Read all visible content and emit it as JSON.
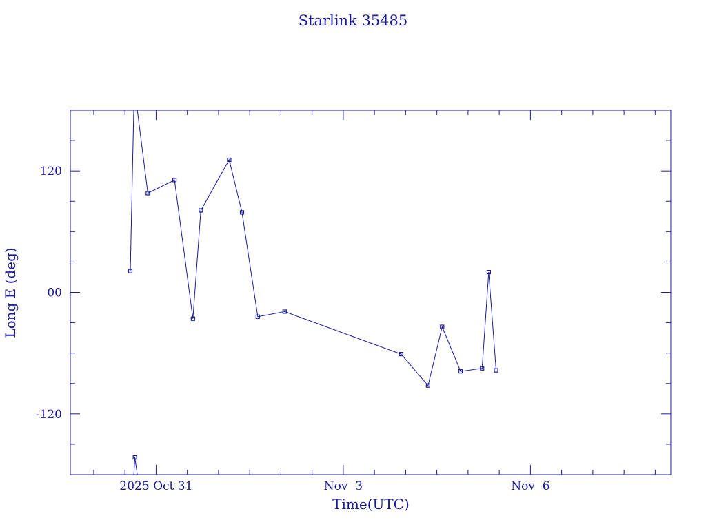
{
  "chart_data": {
    "type": "line",
    "title": "Starlink 35485",
    "xlabel": "Time(UTC)",
    "ylabel": "Long E (deg)",
    "color": "#1a1a9e",
    "ylim": [
      -180,
      180
    ],
    "y_ticks": [
      {
        "value": 120,
        "label": "120"
      },
      {
        "value": 0,
        "label": "00"
      },
      {
        "value": -120,
        "label": "-120"
      }
    ],
    "xlim": [
      "2025-10-29T15:00",
      "2025-11-08T06:00"
    ],
    "x_ticks": [
      {
        "value": "2025-10-31T00:00",
        "label": "2025 Oct 31"
      },
      {
        "value": "2025-11-03T00:00",
        "label": "Nov  3"
      },
      {
        "value": "2025-11-06T00:00",
        "label": "Nov  6"
      }
    ],
    "grid": false,
    "segments": [
      [
        {
          "t": "2025-10-30T14:04",
          "y": 21
        },
        {
          "t": "2025-10-30T15:24",
          "y": 180
        }
      ],
      [
        {
          "t": "2025-10-30T15:26",
          "y": -180
        },
        {
          "t": "2025-10-30T15:50",
          "y": -163
        },
        {
          "t": "2025-10-30T16:45",
          "y": -180
        }
      ],
      [
        {
          "t": "2025-10-30T16:47",
          "y": 180
        },
        {
          "t": "2025-10-30T20:48",
          "y": 98
        },
        {
          "t": "2025-10-31T07:04",
          "y": 111
        },
        {
          "t": "2025-10-31T14:09",
          "y": -26
        },
        {
          "t": "2025-10-31T17:13",
          "y": 81
        },
        {
          "t": "2025-11-01T04:07",
          "y": 131
        },
        {
          "t": "2025-11-01T09:02",
          "y": 79
        },
        {
          "t": "2025-11-01T15:06",
          "y": -24
        },
        {
          "t": "2025-11-02T01:26",
          "y": -19
        },
        {
          "t": "2025-11-03T22:14",
          "y": -61
        },
        {
          "t": "2025-11-04T08:37",
          "y": -92
        },
        {
          "t": "2025-11-04T14:02",
          "y": -34
        },
        {
          "t": "2025-11-04T21:09",
          "y": -78
        },
        {
          "t": "2025-11-05T05:24",
          "y": -75
        },
        {
          "t": "2025-11-05T07:57",
          "y": 20
        },
        {
          "t": "2025-11-05T10:47",
          "y": -77
        }
      ]
    ]
  }
}
